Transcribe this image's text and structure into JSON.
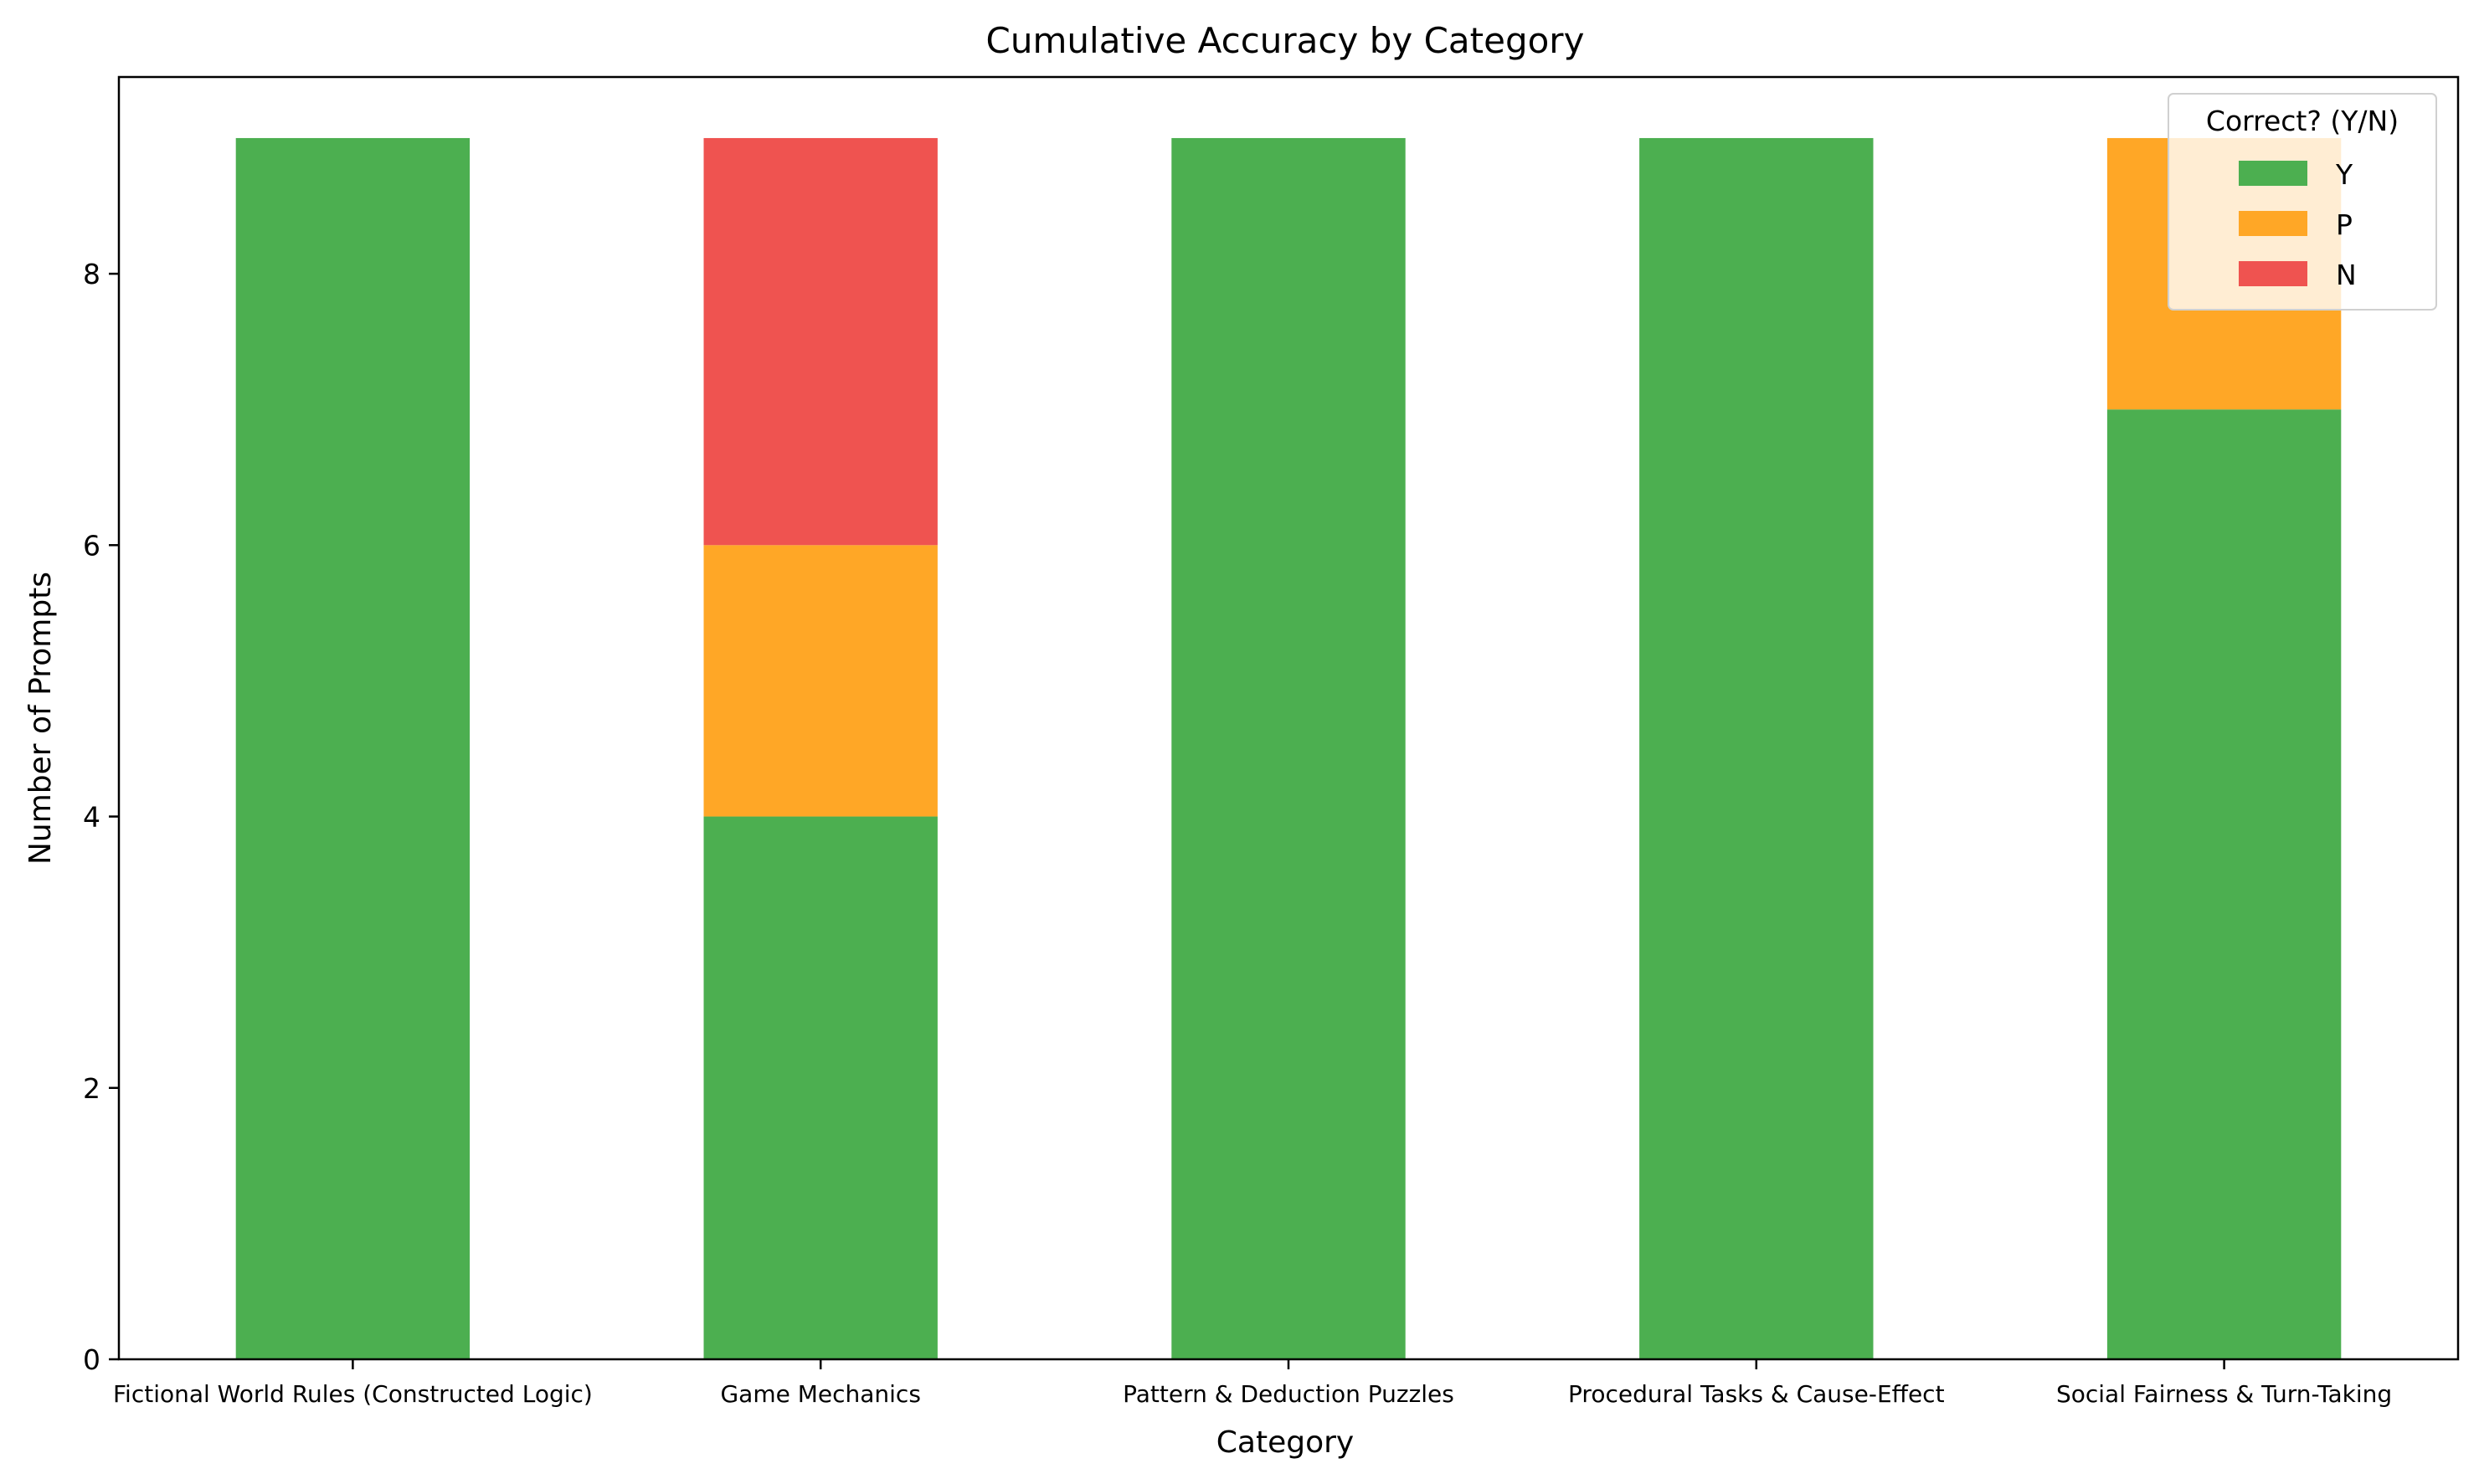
{
  "chart_data": {
    "type": "bar",
    "stacked": true,
    "title": "Cumulative Accuracy by Category",
    "xlabel": "Category",
    "ylabel": "Number of Prompts",
    "categories": [
      "Fictional World Rules (Constructed Logic)",
      "Game Mechanics",
      "Pattern & Deduction Puzzles",
      "Procedural Tasks & Cause-Effect",
      "Social Fairness & Turn-Taking"
    ],
    "series": [
      {
        "name": "Y",
        "color": "#4caf50",
        "values": [
          9,
          4,
          9,
          9,
          7
        ]
      },
      {
        "name": "P",
        "color": "#ffa726",
        "values": [
          0,
          2,
          0,
          0,
          2
        ]
      },
      {
        "name": "N",
        "color": "#ef5350",
        "values": [
          0,
          3,
          0,
          0,
          0
        ]
      }
    ],
    "ylim": [
      0,
      9.45
    ],
    "yticks": [
      0,
      2,
      4,
      6,
      8
    ],
    "grid": false,
    "legend": {
      "title": "Correct? (Y/N)",
      "placement": "top-right"
    }
  }
}
